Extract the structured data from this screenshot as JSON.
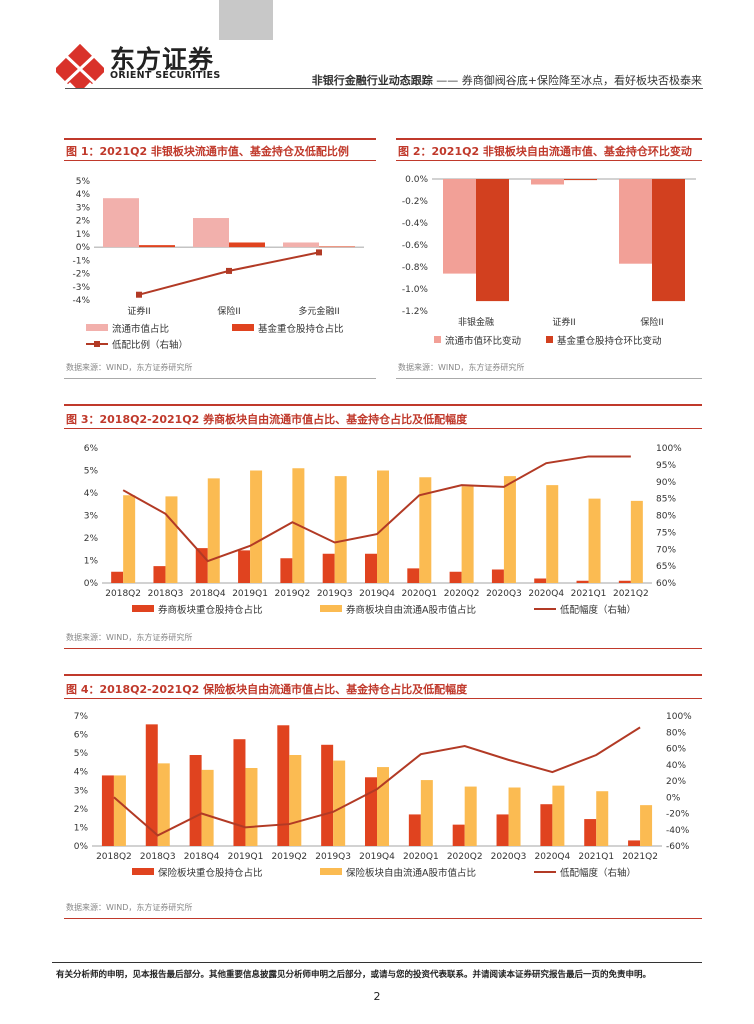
{
  "header": {
    "brand_cn": "东方证券",
    "brand_en": "ORIENT SECURITIES",
    "report_series": "非银行金融行业动态跟踪",
    "report_subtitle": "—— 券商御阀谷底+保险降至冰点，看好板块否极泰来"
  },
  "figures": [
    {
      "title": "图 1：2021Q2 非银板块流通市值、基金持仓及低配比例",
      "source": "数据来源：WIND，东方证券研究所"
    },
    {
      "title": "图 2：2021Q2 非银板块自由流通市值、基金持仓环比变动",
      "source": "数据来源：WIND，东方证券研究所"
    },
    {
      "title": "图 3：2018Q2-2021Q2 券商板块自由流通市值占比、基金持仓占比及低配幅度",
      "source": "数据来源：WIND，东方证券研究所"
    },
    {
      "title": "图 4：2018Q2-2021Q2 保险板块自由流通市值占比、基金持仓占比及低配幅度",
      "source": "数据来源：WIND，东方证券研究所"
    }
  ],
  "chart_data": [
    {
      "type": "bar",
      "categories": [
        "证券II",
        "保险II",
        "多元金融II"
      ],
      "series": [
        {
          "name": "流通市值占比",
          "values": [
            3.7,
            2.2,
            0.35
          ],
          "color": "#f2b0ac",
          "axis": "left"
        },
        {
          "name": "基金重仓股持仓占比",
          "values": [
            0.15,
            0.35,
            0.05
          ],
          "color": "#e0431f",
          "axis": "left"
        },
        {
          "name": "低配比例（右轴）",
          "values": [
            -3.6,
            -1.8,
            -0.4
          ],
          "color": "#b23a25",
          "type": "line"
        }
      ],
      "yticks": [
        "5%",
        "4%",
        "3%",
        "2%",
        "1%",
        "0%",
        "-1%",
        "-2%",
        "-3%",
        "-4%"
      ],
      "ylim": [
        -4,
        5
      ]
    },
    {
      "type": "bar",
      "categories": [
        "非银金融",
        "证券II",
        "保险II"
      ],
      "series": [
        {
          "name": "流通市值环比变动",
          "values": [
            -0.86,
            -0.05,
            -0.77
          ],
          "color": "#f2a097"
        },
        {
          "name": "基金重仓股持仓环比变动",
          "values": [
            -1.11,
            -0.01,
            -1.11
          ],
          "color": "#d2401f"
        }
      ],
      "yticks": [
        "0.0%",
        "-0.2%",
        "-0.4%",
        "-0.6%",
        "-0.8%",
        "-1.0%",
        "-1.2%"
      ],
      "ylim": [
        -1.2,
        0
      ]
    },
    {
      "type": "bar",
      "categories": [
        "2018Q2",
        "2018Q3",
        "2018Q4",
        "2019Q1",
        "2019Q2",
        "2019Q3",
        "2019Q4",
        "2020Q1",
        "2020Q2",
        "2020Q3",
        "2020Q4",
        "2021Q1",
        "2021Q2"
      ],
      "series": [
        {
          "name": "券商板块重仓股持仓占比",
          "values": [
            0.5,
            0.75,
            1.55,
            1.45,
            1.1,
            1.3,
            1.3,
            0.65,
            0.5,
            0.6,
            0.2,
            0.1,
            0.1
          ],
          "color": "#e0431f"
        },
        {
          "name": "券商板块自由流通A股市值占比",
          "values": [
            3.9,
            3.85,
            4.65,
            5.0,
            5.1,
            4.75,
            5.0,
            4.7,
            4.3,
            4.75,
            4.35,
            3.75,
            3.65
          ],
          "color": "#fbbb52"
        },
        {
          "name": "低配幅度（右轴）",
          "values": [
            87.5,
            80.5,
            66.5,
            71,
            78,
            72,
            74.5,
            86,
            89,
            88.5,
            95.5,
            97.5,
            97.5
          ],
          "color": "#b23a25",
          "type": "line"
        }
      ],
      "yticks": [
        "6%",
        "5%",
        "4%",
        "3%",
        "2%",
        "1%",
        "0%"
      ],
      "y2ticks": [
        "100%",
        "95%",
        "90%",
        "85%",
        "80%",
        "75%",
        "70%",
        "65%",
        "60%"
      ],
      "ylim": [
        0,
        6
      ],
      "y2lim": [
        60,
        100
      ]
    },
    {
      "type": "bar",
      "categories": [
        "2018Q2",
        "2018Q3",
        "2018Q4",
        "2019Q1",
        "2019Q2",
        "2019Q3",
        "2019Q4",
        "2020Q1",
        "2020Q2",
        "2020Q3",
        "2020Q4",
        "2021Q1",
        "2021Q2"
      ],
      "series": [
        {
          "name": "保险板块重仓股持仓占比",
          "values": [
            3.8,
            6.55,
            4.9,
            5.75,
            6.5,
            5.45,
            3.7,
            1.7,
            1.15,
            1.7,
            2.25,
            1.45,
            0.3
          ],
          "color": "#e0431f"
        },
        {
          "name": "保险板块自由流通A股市值占比",
          "values": [
            3.8,
            4.45,
            4.1,
            4.2,
            4.9,
            4.6,
            4.25,
            3.55,
            3.2,
            3.15,
            3.25,
            2.95,
            2.2
          ],
          "color": "#fbbb52"
        },
        {
          "name": "低配幅度（右轴）",
          "values": [
            0,
            -47,
            -20,
            -37,
            -33,
            -18,
            10,
            53,
            63,
            46,
            31,
            52,
            86
          ],
          "color": "#b23a25",
          "type": "line"
        }
      ],
      "yticks": [
        "7%",
        "6%",
        "5%",
        "4%",
        "3%",
        "2%",
        "1%",
        "0%"
      ],
      "y2ticks": [
        "100%",
        "80%",
        "60%",
        "40%",
        "20%",
        "0%",
        "-20%",
        "-40%",
        "-60%"
      ],
      "ylim": [
        0,
        7
      ],
      "y2lim": [
        -60,
        100
      ]
    }
  ],
  "footer": {
    "disclaimer": "有关分析师的申明，见本报告最后部分。其他重要信息披露见分析师申明之后部分，或请与您的投资代表联系。并请阅读本证券研究报告最后一页的免责申明。",
    "page_number": "2"
  }
}
